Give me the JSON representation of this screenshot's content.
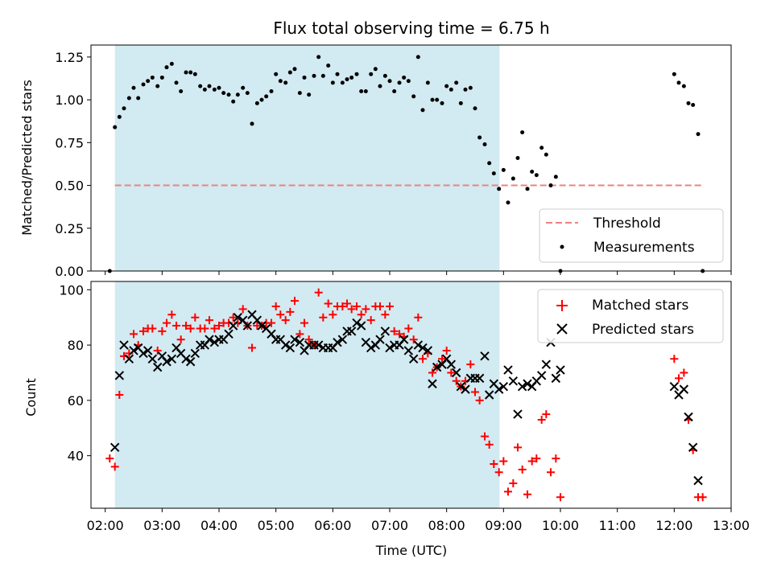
{
  "chart_data": [
    {
      "type": "scatter",
      "title": "Flux total observing time = 6.75 h",
      "xlabel": "",
      "ylabel": "Matched/Predicted stars",
      "xlim": [
        1.75,
        13.0
      ],
      "ylim": [
        0.0,
        1.32
      ],
      "yticks": [
        "0.00",
        "0.25",
        "0.50",
        "0.75",
        "1.00",
        "1.25"
      ],
      "ytick_values": [
        0,
        0.25,
        0.5,
        0.75,
        1.0,
        1.25
      ],
      "shaded_span": [
        2.17,
        8.93
      ],
      "threshold": {
        "name": "Threshold",
        "value": 0.5,
        "x": [
          2.17,
          12.5
        ],
        "color": "#f08080"
      },
      "series": [
        {
          "name": "Measurements",
          "color": "#000000",
          "x": [
            2.08,
            2.17,
            2.25,
            2.33,
            2.42,
            2.5,
            2.58,
            2.67,
            2.75,
            2.83,
            2.92,
            3.0,
            3.08,
            3.17,
            3.25,
            3.33,
            3.42,
            3.5,
            3.58,
            3.67,
            3.75,
            3.83,
            3.92,
            4.0,
            4.08,
            4.17,
            4.25,
            4.33,
            4.42,
            4.5,
            4.58,
            4.67,
            4.75,
            4.83,
            4.92,
            5.0,
            5.08,
            5.17,
            5.25,
            5.33,
            5.42,
            5.5,
            5.58,
            5.67,
            5.75,
            5.83,
            5.92,
            6.0,
            6.08,
            6.17,
            6.25,
            6.33,
            6.42,
            6.5,
            6.58,
            6.67,
            6.75,
            6.83,
            6.92,
            7.0,
            7.08,
            7.17,
            7.25,
            7.33,
            7.42,
            7.5,
            7.58,
            7.67,
            7.75,
            7.83,
            7.92,
            8.0,
            8.08,
            8.17,
            8.25,
            8.33,
            8.42,
            8.5,
            8.58,
            8.67,
            8.75,
            8.83,
            8.92,
            9.0,
            9.08,
            9.17,
            9.25,
            9.33,
            9.42,
            9.5,
            9.58,
            9.67,
            9.75,
            9.83,
            9.92,
            10.0,
            12.0,
            12.08,
            12.17,
            12.25,
            12.33,
            12.42,
            12.5
          ],
          "values": [
            0.0,
            0.84,
            0.9,
            0.95,
            1.01,
            1.07,
            1.01,
            1.09,
            1.11,
            1.13,
            1.08,
            1.13,
            1.19,
            1.21,
            1.1,
            1.05,
            1.16,
            1.16,
            1.15,
            1.08,
            1.06,
            1.08,
            1.06,
            1.07,
            1.04,
            1.03,
            0.99,
            1.03,
            1.07,
            1.04,
            0.86,
            0.98,
            1.0,
            1.02,
            1.05,
            1.15,
            1.11,
            1.1,
            1.16,
            1.18,
            1.04,
            1.13,
            1.03,
            1.14,
            1.25,
            1.14,
            1.2,
            1.1,
            1.15,
            1.1,
            1.12,
            1.13,
            1.15,
            1.05,
            1.05,
            1.15,
            1.18,
            1.08,
            1.14,
            1.11,
            1.05,
            1.1,
            1.13,
            1.11,
            1.02,
            1.25,
            0.94,
            1.1,
            1.0,
            1.0,
            0.98,
            1.08,
            1.06,
            1.1,
            0.98,
            1.06,
            1.07,
            0.95,
            0.78,
            0.74,
            0.63,
            0.57,
            0.48,
            0.59,
            0.4,
            0.54,
            0.66,
            0.81,
            0.48,
            0.58,
            0.56,
            0.72,
            0.68,
            0.5,
            0.55,
            0.0,
            1.15,
            1.1,
            1.08,
            0.98,
            0.97,
            0.8,
            0.0
          ]
        }
      ],
      "legend": {
        "placement": "lower-right",
        "entries": [
          "Threshold",
          "Measurements"
        ]
      }
    },
    {
      "type": "scatter",
      "title": "",
      "xlabel": "Time (UTC)",
      "ylabel": "Count",
      "xlim": [
        1.75,
        13.0
      ],
      "ylim": [
        21,
        103
      ],
      "xticks": [
        "02:00",
        "03:00",
        "04:00",
        "05:00",
        "06:00",
        "07:00",
        "08:00",
        "09:00",
        "10:00",
        "11:00",
        "12:00",
        "13:00"
      ],
      "xtick_values": [
        2,
        3,
        4,
        5,
        6,
        7,
        8,
        9,
        10,
        11,
        12,
        13
      ],
      "yticks": [
        "40",
        "60",
        "80",
        "100"
      ],
      "ytick_values": [
        40,
        60,
        80,
        100
      ],
      "shaded_span": [
        2.17,
        8.93
      ],
      "series": [
        {
          "name": "Matched stars",
          "marker": "plus",
          "color": "#ff0000",
          "x": [
            2.08,
            2.17,
            2.25,
            2.33,
            2.42,
            2.5,
            2.58,
            2.67,
            2.75,
            2.83,
            2.92,
            3.0,
            3.08,
            3.17,
            3.25,
            3.33,
            3.42,
            3.5,
            3.58,
            3.67,
            3.75,
            3.83,
            3.92,
            4.0,
            4.08,
            4.17,
            4.25,
            4.33,
            4.42,
            4.5,
            4.58,
            4.67,
            4.75,
            4.83,
            4.92,
            5.0,
            5.08,
            5.17,
            5.25,
            5.33,
            5.42,
            5.5,
            5.58,
            5.67,
            5.75,
            5.83,
            5.92,
            6.0,
            6.08,
            6.17,
            6.25,
            6.33,
            6.42,
            6.5,
            6.58,
            6.67,
            6.75,
            6.83,
            6.92,
            7.0,
            7.08,
            7.17,
            7.25,
            7.33,
            7.42,
            7.5,
            7.58,
            7.67,
            7.75,
            7.83,
            7.92,
            8.0,
            8.08,
            8.17,
            8.25,
            8.33,
            8.42,
            8.5,
            8.58,
            8.67,
            8.75,
            8.83,
            8.92,
            9.0,
            9.08,
            9.17,
            9.25,
            9.33,
            9.42,
            9.5,
            9.58,
            9.67,
            9.75,
            9.83,
            9.92,
            10.0,
            12.0,
            12.08,
            12.17,
            12.25,
            12.33,
            12.42,
            12.5
          ],
          "values": [
            39,
            36,
            62,
            76,
            77,
            84,
            80,
            85,
            86,
            86,
            78,
            85,
            88,
            91,
            87,
            82,
            87,
            86,
            90,
            86,
            86,
            89,
            86,
            87,
            88,
            88,
            90,
            88,
            93,
            87,
            79,
            87,
            87,
            88,
            88,
            94,
            91,
            89,
            92,
            96,
            84,
            88,
            82,
            80,
            99,
            90,
            95,
            91,
            94,
            94,
            95,
            93,
            94,
            91,
            93,
            89,
            94,
            94,
            91,
            94,
            85,
            84,
            83,
            86,
            82,
            90,
            75,
            77,
            70,
            72,
            75,
            78,
            70,
            67,
            65,
            67,
            73,
            63,
            60,
            47,
            44,
            37,
            34,
            38,
            27,
            30,
            43,
            35,
            26,
            38,
            39,
            53,
            55,
            34,
            39,
            25,
            75,
            68,
            70,
            53,
            42,
            25,
            25
          ]
        },
        {
          "name": "Predicted stars",
          "marker": "x",
          "color": "#000000",
          "x": [
            2.17,
            2.25,
            2.33,
            2.42,
            2.5,
            2.58,
            2.67,
            2.75,
            2.83,
            2.92,
            3.0,
            3.08,
            3.17,
            3.25,
            3.33,
            3.42,
            3.5,
            3.58,
            3.67,
            3.75,
            3.83,
            3.92,
            4.0,
            4.08,
            4.17,
            4.25,
            4.33,
            4.42,
            4.5,
            4.58,
            4.67,
            4.75,
            4.83,
            4.92,
            5.0,
            5.08,
            5.17,
            5.25,
            5.33,
            5.42,
            5.5,
            5.58,
            5.67,
            5.75,
            5.83,
            5.92,
            6.0,
            6.08,
            6.17,
            6.25,
            6.33,
            6.42,
            6.5,
            6.58,
            6.67,
            6.75,
            6.83,
            6.92,
            7.0,
            7.08,
            7.17,
            7.25,
            7.33,
            7.42,
            7.5,
            7.58,
            7.67,
            7.75,
            7.83,
            7.92,
            8.0,
            8.08,
            8.17,
            8.25,
            8.33,
            8.42,
            8.5,
            8.58,
            8.67,
            8.75,
            8.83,
            8.92,
            9.0,
            9.08,
            9.17,
            9.25,
            9.33,
            9.42,
            9.5,
            9.58,
            9.67,
            9.75,
            9.83,
            9.92,
            10.0,
            12.0,
            12.08,
            12.17,
            12.25,
            12.33,
            12.42
          ],
          "values": [
            43,
            69,
            80,
            75,
            78,
            79,
            77,
            78,
            75,
            72,
            76,
            74,
            75,
            79,
            77,
            75,
            74,
            77,
            80,
            80,
            82,
            81,
            82,
            82,
            84,
            87,
            90,
            89,
            87,
            91,
            89,
            87,
            86,
            84,
            82,
            82,
            80,
            79,
            82,
            81,
            78,
            80,
            80,
            80,
            79,
            79,
            79,
            81,
            82,
            85,
            85,
            88,
            87,
            81,
            79,
            80,
            82,
            85,
            79,
            80,
            80,
            82,
            78,
            75,
            80,
            79,
            78,
            66,
            72,
            73,
            75,
            73,
            70,
            65,
            64,
            68,
            68,
            68,
            76,
            62,
            66,
            64,
            65,
            71,
            67,
            55,
            65,
            66,
            65,
            67,
            69,
            73,
            81,
            68,
            71,
            65,
            62,
            64,
            54,
            43,
            31
          ]
        }
      ],
      "legend": {
        "placement": "top-right",
        "entries": [
          "Matched stars",
          "Predicted stars"
        ]
      }
    }
  ]
}
